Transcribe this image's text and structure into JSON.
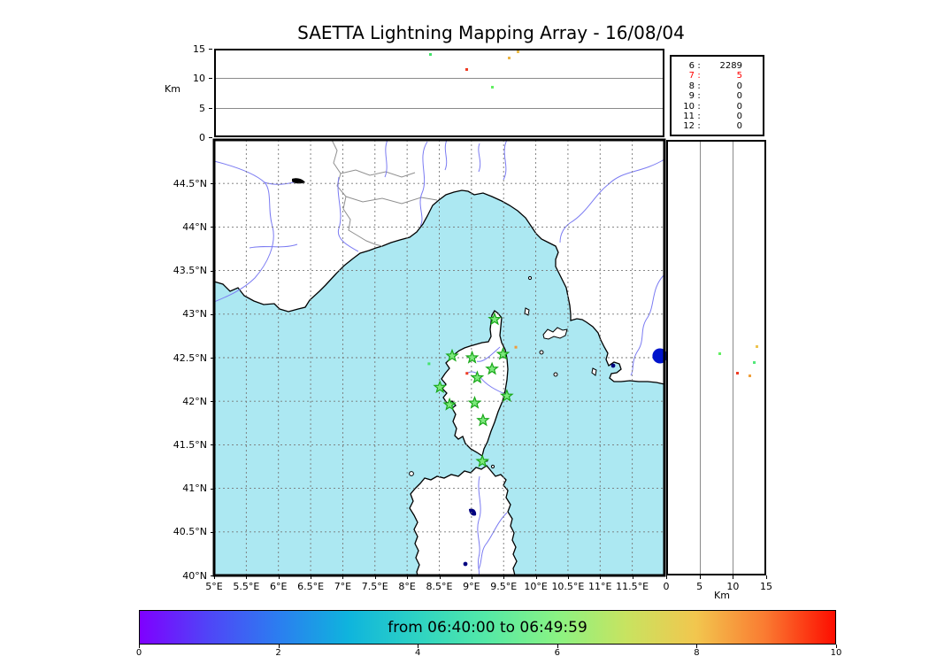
{
  "title": "SAETTA Lightning Mapping Array - 16/08/04",
  "chart_data": {
    "type": "scatter",
    "title": "SAETTA Lightning Mapping Array - 16/08/04",
    "alt_lon_panel": {
      "ylabel": "Km",
      "ylim": [
        0,
        15
      ],
      "yticks": [
        {
          "v": 15,
          "label": "15"
        },
        {
          "v": 10,
          "label": "10"
        },
        {
          "v": 5,
          "label": "5"
        },
        {
          "v": 0,
          "label": "0"
        }
      ],
      "points": [
        {
          "lon": 8.36,
          "alt_km": 14.1,
          "color": "#44e36c"
        },
        {
          "lon": 9.72,
          "alt_km": 14.55,
          "color": "#edbf4e"
        },
        {
          "lon": 9.59,
          "alt_km": 13.5,
          "color": "#eab545"
        },
        {
          "lon": 8.93,
          "alt_km": 11.55,
          "color": "#ef3b22"
        },
        {
          "lon": 9.32,
          "alt_km": 8.55,
          "color": "#62ef62"
        }
      ]
    },
    "counts_panel": {
      "separator": ":",
      "rows": [
        {
          "alt": "6",
          "count": "2289",
          "color": "#000000"
        },
        {
          "alt": "7",
          "count": "5",
          "color": "#ff0000"
        },
        {
          "alt": "8",
          "count": "0",
          "color": "#000000"
        },
        {
          "alt": "9",
          "count": "0",
          "color": "#000000"
        },
        {
          "alt": "10",
          "count": "0",
          "color": "#000000"
        },
        {
          "alt": "11",
          "count": "0",
          "color": "#000000"
        },
        {
          "alt": "12",
          "count": "0",
          "color": "#000000"
        }
      ]
    },
    "map_panel": {
      "lon_range": [
        5,
        12
      ],
      "lat_range": [
        40,
        45
      ],
      "lon_ticks": [
        {
          "v": 5,
          "label": "5°E"
        },
        {
          "v": 5.5,
          "label": "5.5°E"
        },
        {
          "v": 6,
          "label": "6°E"
        },
        {
          "v": 6.5,
          "label": "6.5°E"
        },
        {
          "v": 7,
          "label": "7°E"
        },
        {
          "v": 7.5,
          "label": "7.5°E"
        },
        {
          "v": 8,
          "label": "8°E"
        },
        {
          "v": 8.5,
          "label": "8.5°E"
        },
        {
          "v": 9,
          "label": "9°E"
        },
        {
          "v": 9.5,
          "label": "9.5°E"
        },
        {
          "v": 10,
          "label": "10°E"
        },
        {
          "v": 10.5,
          "label": "10.5°E"
        },
        {
          "v": 11,
          "label": "11°E"
        },
        {
          "v": 11.5,
          "label": "11.5°E"
        }
      ],
      "lat_ticks": [
        {
          "v": 40,
          "label": "40°N"
        },
        {
          "v": 40.5,
          "label": "40.5°N"
        },
        {
          "v": 41,
          "label": "41°N"
        },
        {
          "v": 41.5,
          "label": "41.5°N"
        },
        {
          "v": 42,
          "label": "42°N"
        },
        {
          "v": 42.5,
          "label": "42.5°N"
        },
        {
          "v": 43,
          "label": "43°N"
        },
        {
          "v": 43.5,
          "label": "43.5°N"
        },
        {
          "v": 44,
          "label": "44°N"
        },
        {
          "v": 44.5,
          "label": "44.5°N"
        }
      ],
      "stations": [
        {
          "lon": 9.36,
          "lat": 42.94
        },
        {
          "lon": 8.7,
          "lat": 42.52
        },
        {
          "lon": 9.01,
          "lat": 42.5
        },
        {
          "lon": 9.49,
          "lat": 42.54
        },
        {
          "lon": 9.32,
          "lat": 42.37
        },
        {
          "lon": 9.09,
          "lat": 42.27
        },
        {
          "lon": 8.51,
          "lat": 42.16
        },
        {
          "lon": 9.55,
          "lat": 42.06
        },
        {
          "lon": 8.66,
          "lat": 41.96
        },
        {
          "lon": 9.05,
          "lat": 41.98
        },
        {
          "lon": 9.18,
          "lat": 41.78
        },
        {
          "lon": 9.17,
          "lat": 41.31
        }
      ],
      "points": [
        {
          "lon": 8.93,
          "lat": 42.32,
          "color": "#ef3b22"
        },
        {
          "lon": 9.69,
          "lat": 42.62,
          "color": "#f19a38"
        },
        {
          "lon": 8.34,
          "lat": 42.43,
          "color": "#44e36c"
        }
      ],
      "cluster_marker": {
        "lon": 11.93,
        "lat": 42.52,
        "color": "#0014cc"
      }
    },
    "alt_lat_panel": {
      "xlabel": "Km",
      "xlim": [
        0,
        15
      ],
      "xticks": [
        {
          "v": 0,
          "label": "0"
        },
        {
          "v": 5,
          "label": "5"
        },
        {
          "v": 10,
          "label": "10"
        },
        {
          "v": 15,
          "label": "15"
        }
      ],
      "points": [
        {
          "lat": 42.55,
          "alt_km": 8.0,
          "color": "#62ef62"
        },
        {
          "lat": 42.63,
          "alt_km": 13.55,
          "color": "#eec34e"
        },
        {
          "lat": 42.44,
          "alt_km": 13.15,
          "color": "#52e87a"
        },
        {
          "lat": 42.32,
          "alt_km": 10.75,
          "color": "#ef3b22"
        },
        {
          "lat": 42.29,
          "alt_km": 12.6,
          "color": "#f0a03c"
        }
      ]
    },
    "colorbar": {
      "label": "from 06:40:00 to 06:49:59",
      "range": [
        0,
        10
      ],
      "ticks": [
        {
          "v": 0,
          "label": "0"
        },
        {
          "v": 2,
          "label": "2"
        },
        {
          "v": 4,
          "label": "4"
        },
        {
          "v": 6,
          "label": "6"
        },
        {
          "v": 8,
          "label": "8"
        },
        {
          "v": 10,
          "label": "10"
        }
      ],
      "gradient_stops": [
        {
          "pos": 0.0,
          "color": "#7f00ff"
        },
        {
          "pos": 0.1,
          "color": "#4f46f7"
        },
        {
          "pos": 0.2,
          "color": "#2b7ef0"
        },
        {
          "pos": 0.3,
          "color": "#0fb4dd"
        },
        {
          "pos": 0.4,
          "color": "#2ed3c3"
        },
        {
          "pos": 0.5,
          "color": "#55e9a6"
        },
        {
          "pos": 0.6,
          "color": "#8af383"
        },
        {
          "pos": 0.7,
          "color": "#c8e360"
        },
        {
          "pos": 0.8,
          "color": "#f2c64e"
        },
        {
          "pos": 0.9,
          "color": "#fa7a31"
        },
        {
          "pos": 1.0,
          "color": "#fd0d00"
        }
      ]
    },
    "colors": {
      "sea": "#ace8f2",
      "land": "#ffffff",
      "river": "#7b7bf2",
      "country_border": "#8f8f8f",
      "grid": "#777777",
      "station_fill": "#7de87d",
      "station_edge": "#18a818",
      "highlight_count": "#ff0000"
    }
  }
}
